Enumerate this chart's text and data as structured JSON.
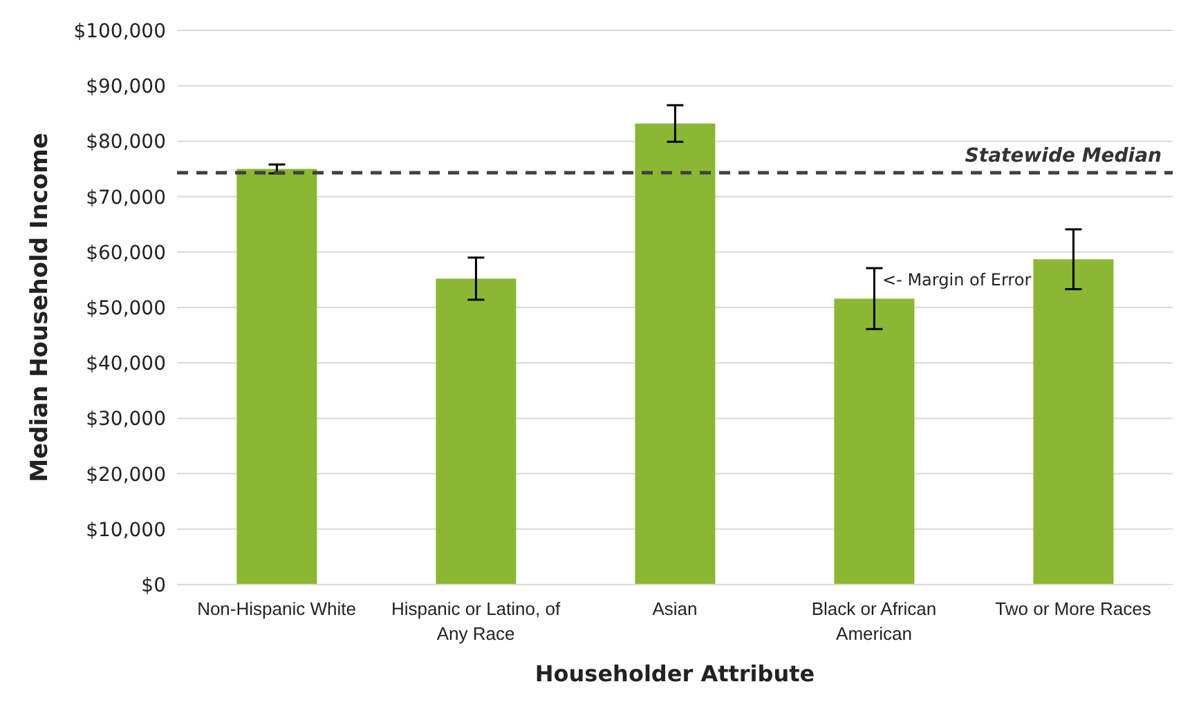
{
  "chart_data": {
    "type": "bar",
    "xlabel": "Householder Attribute",
    "ylabel": "Median Household Income",
    "categories": [
      "Non-Hispanic White",
      "Hispanic or Latino, of Any Race",
      "Asian",
      "Black or African American",
      "Two or More Races"
    ],
    "values": [
      75000,
      55200,
      83200,
      51600,
      58700
    ],
    "errors": [
      800,
      3800,
      3300,
      5500,
      5400
    ],
    "color": "#8ab833",
    "ylim": [
      0,
      100000
    ],
    "yticks": [
      {
        "value": 0,
        "label": "$0"
      },
      {
        "value": 10000,
        "label": "$10,000"
      },
      {
        "value": 20000,
        "label": "$20,000"
      },
      {
        "value": 30000,
        "label": "$30,000"
      },
      {
        "value": 40000,
        "label": "$40,000"
      },
      {
        "value": 50000,
        "label": "$50,000"
      },
      {
        "value": 60000,
        "label": "$60,000"
      },
      {
        "value": 70000,
        "label": "$70,000"
      },
      {
        "value": 80000,
        "label": "$80,000"
      },
      {
        "value": 90000,
        "label": "$90,000"
      },
      {
        "value": 100000,
        "label": "$100,000"
      }
    ],
    "grid": "y",
    "ref_lines": [
      {
        "axis": "y",
        "value": 74300,
        "label": "Statewide Median",
        "color": "#404040",
        "line_style": "dashed"
      }
    ],
    "annotations": [
      {
        "text": "<- Margin of Error",
        "x": "Black or African American",
        "y": 55000
      }
    ]
  }
}
